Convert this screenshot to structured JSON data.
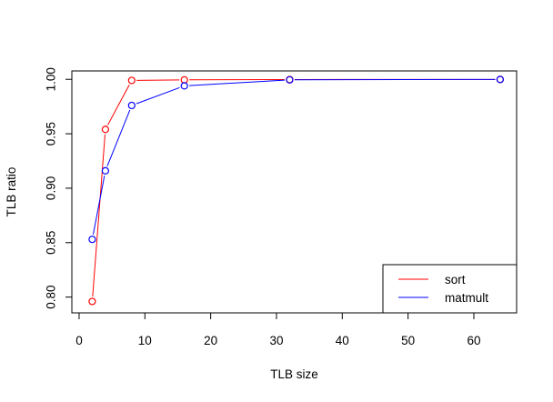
{
  "chart_data": {
    "type": "line",
    "title": "",
    "xlabel": "TLB size",
    "ylabel": "TLB ratio",
    "xlim": [
      -1.1,
      66.5
    ],
    "ylim": [
      0.7855,
      1.0077
    ],
    "x_ticks": [
      0,
      10,
      20,
      30,
      40,
      50,
      60
    ],
    "y_ticks": [
      0.8,
      0.85,
      0.9,
      0.95,
      1.0
    ],
    "x_tick_labels": [
      "0",
      "10",
      "20",
      "30",
      "40",
      "50",
      "60"
    ],
    "y_tick_labels": [
      "0.80",
      "0.85",
      "0.90",
      "0.95",
      "1.00"
    ],
    "grid": false,
    "legend_position": "bottom-right",
    "series": [
      {
        "name": "sort",
        "color": "#ff0000",
        "x": [
          2,
          4,
          8,
          16,
          32,
          64
        ],
        "y": [
          0.796,
          0.954,
          0.999,
          0.9995,
          0.9998,
          0.9999
        ]
      },
      {
        "name": "matmult",
        "color": "#0000ff",
        "x": [
          2,
          4,
          8,
          16,
          32,
          64
        ],
        "y": [
          0.853,
          0.916,
          0.976,
          0.994,
          0.9995,
          0.9999
        ]
      }
    ]
  }
}
